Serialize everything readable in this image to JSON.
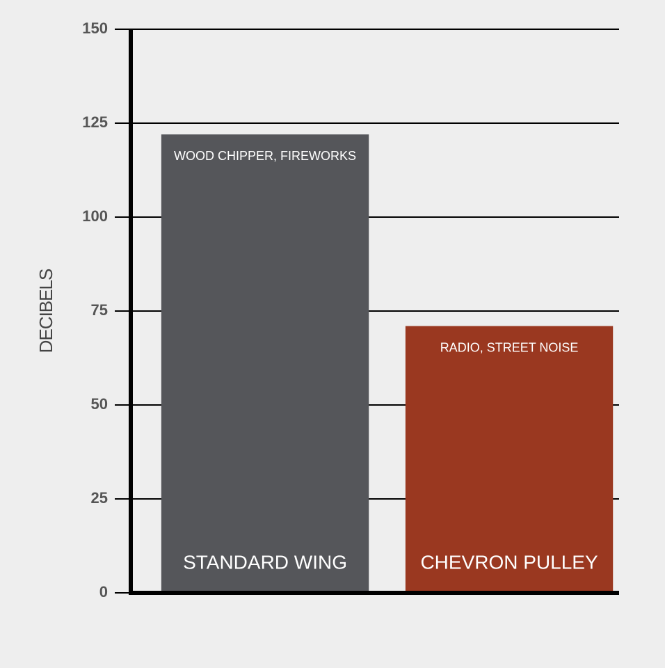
{
  "chart_data": {
    "type": "bar",
    "y_label": "DECIBELS",
    "categories": [
      "STANDARD WING",
      "CHEVRON PULLEY"
    ],
    "annotations": [
      "WOOD CHIPPER, FIREWORKS",
      "RADIO, STREET NOISE"
    ],
    "values": [
      122,
      71
    ],
    "colors": [
      "#55565a",
      "#9a3820"
    ],
    "ylim": [
      0,
      150
    ],
    "yticks": [
      0,
      25,
      50,
      75,
      100,
      125,
      150
    ],
    "grid": true
  }
}
